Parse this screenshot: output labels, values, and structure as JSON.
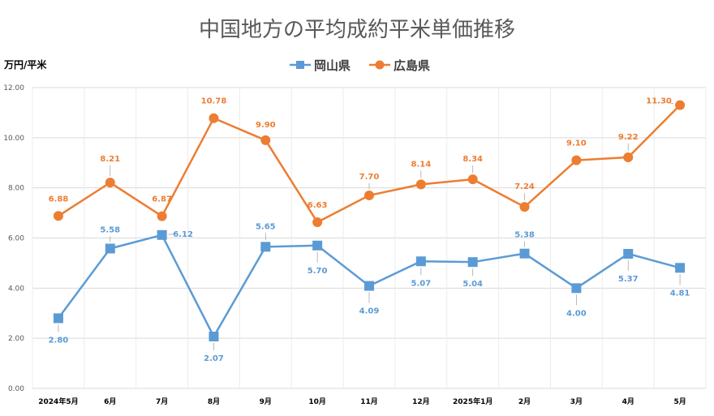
{
  "chart_data": {
    "type": "line",
    "title": "中国地方の平均成約平米単価推移",
    "ylabel": "万円/平米",
    "xlabel": "",
    "categories": [
      "2024年5月",
      "6月",
      "7月",
      "8月",
      "9月",
      "10月",
      "11月",
      "12月",
      "2025年1月",
      "2月",
      "3月",
      "4月",
      "5月"
    ],
    "ylim": [
      0,
      12
    ],
    "yticks": [
      "0.00",
      "2.00",
      "4.00",
      "6.00",
      "8.00",
      "10.00",
      "12.00"
    ],
    "grid": true,
    "legend_position": "top",
    "series": [
      {
        "name": "岡山県",
        "marker": "square",
        "color": "#5B9BD5",
        "values": [
          2.8,
          5.58,
          6.12,
          2.07,
          5.65,
          5.7,
          4.09,
          5.07,
          5.04,
          5.38,
          4.0,
          5.37,
          4.81
        ],
        "labels": [
          "2.80",
          "5.58",
          "6.12",
          "2.07",
          "5.65",
          "5.70",
          "4.09",
          "5.07",
          "5.04",
          "5.38",
          "4.00",
          "5.37",
          "4.81"
        ]
      },
      {
        "name": "広島県",
        "marker": "circle",
        "color": "#ED7D31",
        "values": [
          6.88,
          8.21,
          6.87,
          10.78,
          9.9,
          6.63,
          7.7,
          8.14,
          8.34,
          7.24,
          9.1,
          9.22,
          11.3
        ],
        "labels": [
          "6.88",
          "8.21",
          "6.87",
          "10.78",
          "9.90",
          "6.63",
          "7.70",
          "8.14",
          "8.34",
          "7.24",
          "9.10",
          "9.22",
          "11.30"
        ]
      }
    ]
  }
}
